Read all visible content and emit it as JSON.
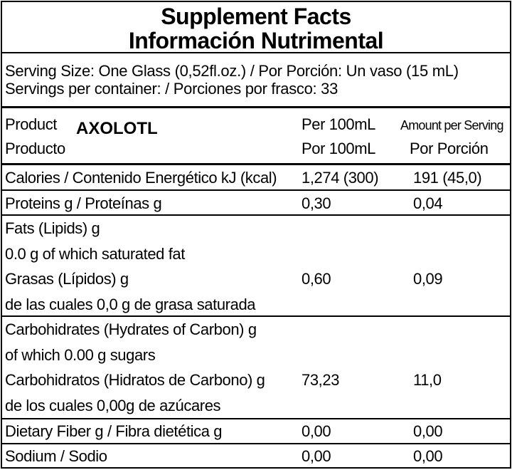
{
  "title": {
    "line1": "Supplement Facts",
    "line2": "Información Nutrimental"
  },
  "serving": {
    "size": "Serving Size: One Glass (0,52fl.oz.) / Por Porción: Un vaso (15 mL)",
    "per_container": "Servings per container: / Porciones por frasco: 33"
  },
  "header": {
    "product_en": "Product",
    "product_es": "Producto",
    "brand": "AXOLOTL",
    "per100_en": "Per 100mL",
    "per100_es": "Por 100mL",
    "serving_en": "Amount per Serving",
    "serving_es": "Por Porción"
  },
  "rows": [
    {
      "label": "Calories / Contenido Energético  kJ (kcal)",
      "per100": "1,274 (300)",
      "per_serving": "191 (45,0)"
    },
    {
      "label": "Proteins g / Proteínas g",
      "per100": "0,30",
      "per_serving": "0,04"
    },
    {
      "lines": [
        "Fats (Lipids) g",
        "0.0 g of which saturated fat",
        "Grasas (Lípidos) g",
        "de las cuales 0,0 g de grasa saturada"
      ],
      "per100": "0,60",
      "per_serving": "0,09"
    },
    {
      "lines": [
        "Carbohidrates (Hydrates of Carbon) g",
        "of which 0.00 g sugars",
        "Carbohidratos (Hidratos de Carbono) g",
        "de los cuales 0,00g de azúcares"
      ],
      "per100": "73,23",
      "per_serving": "11,0"
    },
    {
      "label": "Dietary Fiber g / Fibra dietética g",
      "per100": "0,00",
      "per_serving": "0,00"
    },
    {
      "label": "Sodium / Sodio",
      "per100": "0,00",
      "per_serving": "0,00"
    }
  ]
}
